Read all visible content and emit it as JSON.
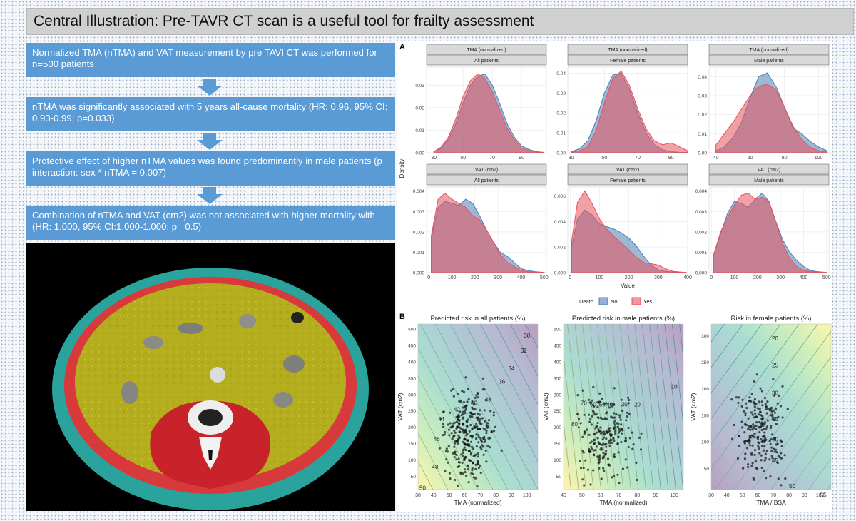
{
  "title": "Central Illustration: Pre-TAVR CT scan is a useful tool for frailty assessment",
  "steps": [
    "Normalized  TMA (nTMA) and VAT measurement by pre TAVI CT was performed for n=500 patients",
    "nTMA was significantly associated with 5 years all-cause mortality (HR: 0.96, 95% CI: 0.93-0.99; p=0.033)",
    "Protective effect of higher nTMA values was found predominantly in male patients (p interaction: sex * nTMA = 0.007)",
    "Combination of nTMA and VAT (cm2) was not associated with higher mortality with (HR: 1.000, 95% CI:1.000-1.000; p= 0.5)"
  ],
  "panel_labels": {
    "a": "A",
    "b": "B"
  },
  "colors": {
    "no": "#4c7fb5",
    "yes": "#e6525c",
    "step_box": "#5b9bd5"
  },
  "chart_data": [
    {
      "type": "area",
      "panel": "A",
      "y_axis_label": "Density",
      "x_axis_label": "Value",
      "legend": {
        "title": "Death",
        "entries": [
          "No",
          "Yes"
        ],
        "placement": "bottom"
      },
      "facets": [
        {
          "strip1": "TMA (normalized)",
          "strip2": "All patients",
          "xlim": [
            25,
            107
          ],
          "ylim": [
            0,
            0.038
          ],
          "xticks": [
            30,
            50,
            70,
            90
          ],
          "yticks": [
            0,
            0.01,
            0.02,
            0.03
          ],
          "ytick_labels": [
            "0.00",
            "0.01",
            "0.02",
            "0.03"
          ],
          "series": [
            {
              "name": "No",
              "x": [
                30,
                35,
                40,
                45,
                50,
                55,
                60,
                65,
                70,
                75,
                80,
                85,
                90,
                95,
                100,
                105
              ],
              "y": [
                0.0005,
                0.002,
                0.006,
                0.013,
                0.022,
                0.03,
                0.034,
                0.035,
                0.03,
                0.022,
                0.013,
                0.007,
                0.003,
                0.0015,
                0.0005,
                0.0002
              ]
            },
            {
              "name": "Yes",
              "x": [
                30,
                35,
                40,
                45,
                50,
                55,
                60,
                65,
                70,
                75,
                80,
                85,
                90,
                95,
                100,
                105
              ],
              "y": [
                0.0005,
                0.0025,
                0.007,
                0.015,
                0.025,
                0.032,
                0.035,
                0.033,
                0.027,
                0.019,
                0.011,
                0.006,
                0.002,
                0.001,
                0.0003,
                0.0001
              ]
            }
          ]
        },
        {
          "strip1": "TMA (normalized)",
          "strip2": "Female patients",
          "xlim": [
            28,
            100
          ],
          "ylim": [
            0,
            0.043
          ],
          "xticks": [
            30,
            50,
            70,
            90
          ],
          "yticks": [
            0,
            0.01,
            0.02,
            0.03,
            0.04
          ],
          "ytick_labels": [
            "0.00",
            "0.01",
            "0.02",
            "0.03",
            "0.04"
          ],
          "series": [
            {
              "name": "No",
              "x": [
                30,
                35,
                40,
                45,
                50,
                55,
                60,
                65,
                70,
                75,
                80,
                85,
                90,
                95,
                100
              ],
              "y": [
                0.0005,
                0.002,
                0.006,
                0.016,
                0.03,
                0.039,
                0.04,
                0.032,
                0.02,
                0.01,
                0.004,
                0.0015,
                0.0005,
                0.0002,
                0.0001
              ]
            },
            {
              "name": "Yes",
              "x": [
                30,
                35,
                40,
                45,
                50,
                55,
                60,
                65,
                70,
                75,
                80,
                85,
                90,
                95,
                100
              ],
              "y": [
                0.0002,
                0.001,
                0.003,
                0.011,
                0.025,
                0.037,
                0.041,
                0.034,
                0.022,
                0.012,
                0.006,
                0.004,
                0.005,
                0.003,
                0.001
              ]
            }
          ]
        },
        {
          "strip1": "TMA (normalized)",
          "strip2": "Male patients",
          "xlim": [
            36,
            106
          ],
          "ylim": [
            0,
            0.045
          ],
          "xticks": [
            40,
            60,
            80,
            100
          ],
          "yticks": [
            0,
            0.01,
            0.02,
            0.03,
            0.04
          ],
          "ytick_labels": [
            "0.00",
            "0.01",
            "0.02",
            "0.03",
            "0.04"
          ],
          "series": [
            {
              "name": "No",
              "x": [
                40,
                45,
                50,
                55,
                60,
                65,
                70,
                75,
                80,
                85,
                90,
                95,
                100,
                105
              ],
              "y": [
                0.001,
                0.003,
                0.008,
                0.016,
                0.029,
                0.04,
                0.042,
                0.035,
                0.024,
                0.013,
                0.01,
                0.006,
                0.003,
                0.001
              ]
            },
            {
              "name": "Yes",
              "x": [
                40,
                45,
                50,
                55,
                60,
                65,
                70,
                75,
                80,
                85,
                90,
                95,
                100,
                105
              ],
              "y": [
                0.004,
                0.01,
                0.016,
                0.023,
                0.03,
                0.035,
                0.036,
                0.033,
                0.024,
                0.014,
                0.007,
                0.003,
                0.001,
                0.0003
              ]
            }
          ]
        },
        {
          "strip1": "VAT (cm2)",
          "strip2": "All patients",
          "xlim": [
            -10,
            510
          ],
          "ylim": [
            0,
            0.0042
          ],
          "xticks": [
            0,
            100,
            200,
            300,
            400,
            500
          ],
          "yticks": [
            0,
            0.001,
            0.002,
            0.003,
            0.004
          ],
          "ytick_labels": [
            "0.000",
            "0.001",
            "0.002",
            "0.003",
            "0.004"
          ],
          "series": [
            {
              "name": "No",
              "x": [
                10,
                40,
                70,
                100,
                130,
                160,
                190,
                220,
                250,
                280,
                310,
                340,
                370,
                400,
                430,
                460,
                500
              ],
              "y": [
                0.0017,
                0.0032,
                0.0035,
                0.0034,
                0.0033,
                0.0036,
                0.0034,
                0.0028,
                0.0021,
                0.0015,
                0.001,
                0.0008,
                0.0005,
                0.0002,
                0.0001,
                5e-05,
                1e-05
              ]
            },
            {
              "name": "Yes",
              "x": [
                10,
                40,
                70,
                100,
                130,
                160,
                190,
                220,
                250,
                280,
                310,
                340,
                370,
                400,
                430,
                460,
                500
              ],
              "y": [
                0.0018,
                0.0036,
                0.0039,
                0.0036,
                0.0034,
                0.0032,
                0.0028,
                0.0026,
                0.0021,
                0.0015,
                0.0009,
                0.0005,
                0.0003,
                0.0001,
                5e-05,
                2e-05,
                1e-05
              ]
            }
          ]
        },
        {
          "strip1": "VAT (cm2)",
          "strip2": "Female patients",
          "xlim": [
            -8,
            400
          ],
          "ylim": [
            0,
            0.0067
          ],
          "xticks": [
            0,
            100,
            200,
            300,
            400
          ],
          "yticks": [
            0,
            0.002,
            0.004,
            0.006
          ],
          "ytick_labels": [
            "0.000",
            "0.002",
            "0.004",
            "0.006"
          ],
          "series": [
            {
              "name": "No",
              "x": [
                5,
                25,
                50,
                75,
                100,
                125,
                150,
                175,
                200,
                225,
                250,
                275,
                300,
                325,
                350,
                375,
                395
              ],
              "y": [
                0.002,
                0.0042,
                0.0049,
                0.0045,
                0.0038,
                0.0036,
                0.0034,
                0.0031,
                0.0027,
                0.0021,
                0.0013,
                0.0006,
                0.0002,
                0.0001,
                5e-05,
                2e-05,
                1e-05
              ]
            },
            {
              "name": "Yes",
              "x": [
                5,
                25,
                50,
                75,
                100,
                125,
                150,
                175,
                200,
                225,
                250,
                275,
                300,
                325,
                350,
                375,
                395
              ],
              "y": [
                0.0025,
                0.0055,
                0.0064,
                0.0054,
                0.0042,
                0.0034,
                0.0028,
                0.0023,
                0.0018,
                0.0012,
                0.0008,
                0.0007,
                0.0006,
                0.0003,
                0.0001,
                5e-05,
                1e-05
              ]
            }
          ]
        },
        {
          "strip1": "VAT (cm2)",
          "strip2": "Male patients",
          "xlim": [
            -10,
            510
          ],
          "ylim": [
            0,
            0.0042
          ],
          "xticks": [
            0,
            100,
            200,
            300,
            400,
            500
          ],
          "yticks": [
            0,
            0.001,
            0.002,
            0.003,
            0.004
          ],
          "ytick_labels": [
            "0.000",
            "0.001",
            "0.002",
            "0.003",
            "0.004"
          ],
          "series": [
            {
              "name": "No",
              "x": [
                10,
                40,
                70,
                100,
                130,
                160,
                190,
                220,
                250,
                280,
                310,
                340,
                370,
                400,
                430,
                460,
                500
              ],
              "y": [
                0.0009,
                0.0019,
                0.0029,
                0.0035,
                0.0034,
                0.0032,
                0.0036,
                0.0039,
                0.0035,
                0.0025,
                0.0016,
                0.001,
                0.0006,
                0.0003,
                0.0001,
                5e-05,
                1e-05
              ]
            },
            {
              "name": "Yes",
              "x": [
                10,
                40,
                70,
                100,
                130,
                160,
                190,
                220,
                250,
                280,
                310,
                340,
                370,
                400,
                430,
                460,
                500
              ],
              "y": [
                0.0009,
                0.002,
                0.0027,
                0.0033,
                0.0038,
                0.0039,
                0.0036,
                0.0037,
                0.0035,
                0.0025,
                0.0014,
                0.0007,
                0.0003,
                0.0001,
                5e-05,
                2e-05,
                1e-05
              ]
            }
          ]
        }
      ]
    },
    {
      "type": "scatter",
      "panel": "B",
      "plots": [
        {
          "title": "Predicted risk in all patients (%)",
          "xlabel": "TMA (normalized)",
          "ylabel": "VAT (cm2)",
          "xlim": [
            30,
            107
          ],
          "ylim": [
            10,
            515
          ],
          "xticks": [
            30,
            40,
            50,
            60,
            70,
            80,
            90,
            100
          ],
          "yticks": [
            50,
            100,
            150,
            200,
            250,
            300,
            350,
            400,
            450,
            500
          ],
          "contour_slope": -9,
          "contour_labels": [
            "30",
            "32",
            "34",
            "36",
            "38",
            "40",
            "42",
            "44",
            "46",
            "48",
            "50"
          ],
          "contour_label_points": [
            [
              100,
              480
            ],
            [
              98,
              435
            ],
            [
              90,
              380
            ],
            [
              84,
              340
            ],
            [
              75,
              285
            ],
            [
              66,
              275
            ],
            [
              55,
              255
            ],
            [
              45,
              225
            ],
            [
              42,
              165
            ],
            [
              41,
              80
            ],
            [
              33,
              15
            ]
          ],
          "point_count": 300
        },
        {
          "title": "Predicted risk in male patients (%)",
          "xlabel": "TMA (normalized)",
          "ylabel": "VAT (cm2)",
          "xlim": [
            40,
            105
          ],
          "ylim": [
            10,
            515
          ],
          "xticks": [
            40,
            50,
            60,
            70,
            80,
            90,
            100
          ],
          "yticks": [
            50,
            100,
            150,
            200,
            250,
            300,
            350,
            400,
            450,
            500
          ],
          "contour_slope": -50,
          "contour_labels": [
            "80",
            "70",
            "60",
            "50",
            "40",
            "30",
            "20",
            "10"
          ],
          "contour_label_points": [
            [
              46,
              210
            ],
            [
              51,
              275
            ],
            [
              56,
              270
            ],
            [
              61,
              270
            ],
            [
              65,
              270
            ],
            [
              73,
              270
            ],
            [
              80,
              270
            ],
            [
              100,
              325
            ]
          ],
          "point_count": 220
        },
        {
          "title": "Risk in female patients (%)",
          "xlabel": "TMA / BSA",
          "ylabel": "VAT (cm2)",
          "xlim": [
            30,
            107
          ],
          "ylim": [
            10,
            322
          ],
          "xticks": [
            30,
            40,
            50,
            60,
            70,
            80,
            90,
            100
          ],
          "yticks": [
            50,
            100,
            150,
            200,
            250,
            300
          ],
          "contour_slope": 4,
          "contour_labels": [
            "20",
            "25",
            "30",
            "35",
            "40",
            "45",
            "50",
            "55"
          ],
          "contour_label_points": [
            [
              71,
              295
            ],
            [
              71,
              245
            ],
            [
              71,
              192
            ],
            [
              71,
              143
            ],
            [
              71,
              105
            ],
            [
              71,
              65
            ],
            [
              82,
              17
            ],
            [
              102,
              0
            ]
          ],
          "point_count": 220
        }
      ]
    }
  ]
}
